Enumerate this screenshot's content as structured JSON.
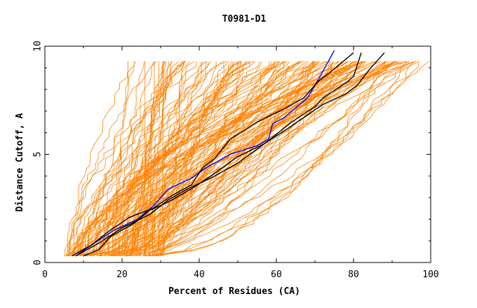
{
  "chart_data": {
    "type": "line",
    "title": "T0981-D1",
    "xlabel": "Percent of Residues (CA)",
    "ylabel": "Distance Cutoff, A",
    "xlim": [
      0,
      100
    ],
    "ylim": [
      0,
      10
    ],
    "xticks": [
      0,
      20,
      40,
      60,
      80,
      100
    ],
    "yticks": [
      0,
      5,
      10
    ],
    "x_tick_labels": [
      "0",
      "20",
      "40",
      "60",
      "80",
      "100"
    ],
    "y_tick_labels": [
      "0",
      "5",
      "10"
    ],
    "background_series_color": "#ff8000",
    "background_series_count": 150,
    "background_x_at_cutoff_0_3": [
      5,
      30
    ],
    "background_x_at_cutoff_9_5": [
      16,
      100
    ],
    "highlighted_series": [
      {
        "name": "blue-model",
        "color": "#0000ff",
        "points": [
          [
            8,
            0.3
          ],
          [
            12,
            0.8
          ],
          [
            18,
            1.5
          ],
          [
            24,
            2.0
          ],
          [
            28,
            2.6
          ],
          [
            32,
            3.4
          ],
          [
            38,
            3.9
          ],
          [
            42,
            4.4
          ],
          [
            48,
            5.0
          ],
          [
            55,
            5.4
          ],
          [
            58,
            5.7
          ],
          [
            59,
            6.4
          ],
          [
            62,
            6.7
          ],
          [
            68,
            7.6
          ],
          [
            71,
            8.5
          ],
          [
            75,
            9.8
          ]
        ]
      },
      {
        "name": "black-model-1",
        "color": "#000000",
        "points": [
          [
            7,
            0.3
          ],
          [
            12,
            0.8
          ],
          [
            17,
            1.5
          ],
          [
            22,
            2.1
          ],
          [
            28,
            2.5
          ],
          [
            33,
            3.1
          ],
          [
            38,
            3.6
          ],
          [
            41,
            4.4
          ],
          [
            44,
            4.8
          ],
          [
            48,
            5.7
          ],
          [
            55,
            6.5
          ],
          [
            62,
            7.1
          ],
          [
            67,
            7.6
          ],
          [
            71,
            8.4
          ],
          [
            74,
            8.8
          ],
          [
            80,
            9.7
          ]
        ]
      },
      {
        "name": "black-model-2",
        "color": "#000000",
        "points": [
          [
            8,
            0.3
          ],
          [
            14,
            0.9
          ],
          [
            20,
            1.6
          ],
          [
            27,
            2.2
          ],
          [
            32,
            2.9
          ],
          [
            37,
            3.4
          ],
          [
            43,
            3.9
          ],
          [
            50,
            4.6
          ],
          [
            57,
            5.5
          ],
          [
            64,
            6.5
          ],
          [
            70,
            7.2
          ],
          [
            72,
            7.6
          ],
          [
            78,
            8.3
          ],
          [
            80,
            8.6
          ],
          [
            82,
            9.7
          ]
        ]
      },
      {
        "name": "black-model-3",
        "color": "#000000",
        "points": [
          [
            10,
            0.3
          ],
          [
            14,
            0.6
          ],
          [
            17,
            1.2
          ],
          [
            23,
            1.8
          ],
          [
            27,
            2.4
          ],
          [
            32,
            2.8
          ],
          [
            38,
            3.4
          ],
          [
            43,
            4.0
          ],
          [
            50,
            4.9
          ],
          [
            57,
            5.5
          ],
          [
            63,
            6.2
          ],
          [
            72,
            7.3
          ],
          [
            78,
            7.8
          ],
          [
            81,
            8.2
          ],
          [
            84,
            8.9
          ],
          [
            88,
            9.7
          ]
        ]
      }
    ]
  }
}
